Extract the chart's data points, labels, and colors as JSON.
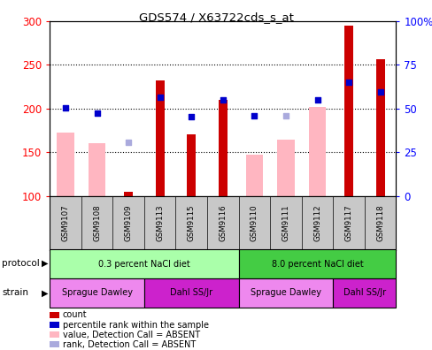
{
  "title": "GDS574 / X63722cds_s_at",
  "samples": [
    "GSM9107",
    "GSM9108",
    "GSM9109",
    "GSM9113",
    "GSM9115",
    "GSM9116",
    "GSM9110",
    "GSM9111",
    "GSM9112",
    "GSM9117",
    "GSM9118"
  ],
  "count_values": [
    null,
    null,
    105,
    232,
    170,
    210,
    null,
    null,
    null,
    295,
    256
  ],
  "rank_values": [
    201,
    195,
    null,
    213,
    191,
    210,
    192,
    null,
    210,
    230,
    219
  ],
  "absent_value_bars": [
    172,
    160,
    null,
    null,
    null,
    null,
    147,
    164,
    202,
    null,
    null
  ],
  "absent_rank_dots": [
    null,
    null,
    161,
    null,
    null,
    null,
    null,
    192,
    null,
    null,
    null
  ],
  "ylim_left": [
    100,
    300
  ],
  "ylim_right": [
    0,
    100
  ],
  "yticks_left": [
    100,
    150,
    200,
    250,
    300
  ],
  "yticks_right": [
    0,
    25,
    50,
    75,
    100
  ],
  "yticklabels_right": [
    "0",
    "25",
    "50",
    "75",
    "100%"
  ],
  "protocol_groups": [
    {
      "label": "0.3 percent NaCl diet",
      "start": 0,
      "end": 6,
      "color": "#aaffaa"
    },
    {
      "label": "8.0 percent NaCl diet",
      "start": 6,
      "end": 11,
      "color": "#44cc44"
    }
  ],
  "strain_groups": [
    {
      "label": "Sprague Dawley",
      "start": 0,
      "end": 3,
      "color": "#ee88ee"
    },
    {
      "label": "Dahl SS/Jr",
      "start": 3,
      "end": 6,
      "color": "#cc22cc"
    },
    {
      "label": "Sprague Dawley",
      "start": 6,
      "end": 9,
      "color": "#ee88ee"
    },
    {
      "label": "Dahl SS/Jr",
      "start": 9,
      "end": 11,
      "color": "#cc22cc"
    }
  ],
  "count_color": "#cc0000",
  "rank_color": "#0000cc",
  "absent_value_color": "#ffb6c1",
  "absent_rank_color": "#aaaadd",
  "sample_bg_color": "#c8c8c8",
  "bg_color": "#ffffff",
  "legend_items": [
    {
      "label": "count",
      "color": "#cc0000"
    },
    {
      "label": "percentile rank within the sample",
      "color": "#0000cc"
    },
    {
      "label": "value, Detection Call = ABSENT",
      "color": "#ffb6c1"
    },
    {
      "label": "rank, Detection Call = ABSENT",
      "color": "#aaaadd"
    }
  ]
}
